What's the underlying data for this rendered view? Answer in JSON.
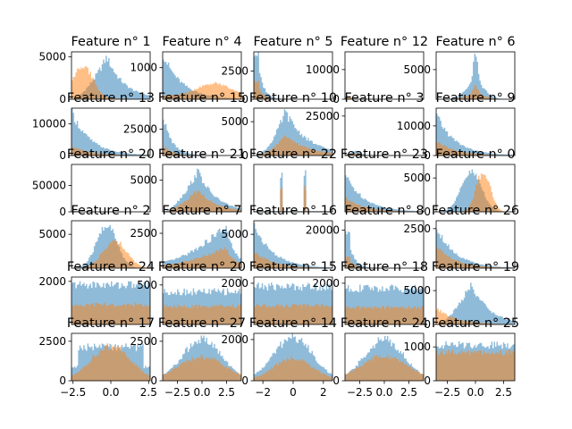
{
  "colors": {
    "blue": "#1f77b4",
    "orange": "#ff7f0e",
    "axes": "#000000"
  },
  "chart_data": [
    {
      "id": "r0c0",
      "type": "histogram",
      "title": "Feature n° 1",
      "yticks": [
        "5000",
        "0"
      ],
      "xticks": [],
      "ylim": [
        0,
        5600
      ],
      "shape": {
        "b": "skewpeak",
        "o": "leftpeak"
      },
      "b_peak": 5000,
      "o_peak": 4000
    },
    {
      "id": "r0c1",
      "type": "histogram",
      "title": "Feature n° 4",
      "yticks": [
        "1000"
      ],
      "xticks": [],
      "ylim": [
        0,
        1500
      ],
      "shape": {
        "b": "decay",
        "o": "hump_right"
      },
      "b_peak": 1450,
      "o_peak": 500
    },
    {
      "id": "r0c2",
      "type": "histogram",
      "title": "Feature n° 5",
      "yticks": [
        "2500",
        "0"
      ],
      "xticks": [],
      "ylim": [
        0,
        4200
      ],
      "shape": {
        "b": "spike_left",
        "o": "spike_left"
      },
      "b_peak": 4000,
      "o_peak": 1500
    },
    {
      "id": "r0c3",
      "type": "histogram",
      "title": "Feature n° 12",
      "yticks": [
        "10000",
        "0"
      ],
      "xticks": [],
      "ylim": [
        0,
        16000
      ],
      "shape": {
        "b": "tiny_left",
        "o": "tiny_left"
      },
      "b_peak": 800,
      "o_peak": 600
    },
    {
      "id": "r0c4",
      "type": "histogram",
      "title": "Feature n° 6",
      "yticks": [
        "5000"
      ],
      "xticks": [],
      "ylim": [
        0,
        8000
      ],
      "shape": {
        "b": "spike_center",
        "o": "spike_center"
      },
      "b_peak": 7500,
      "o_peak": 2500
    },
    {
      "id": "r1c0",
      "type": "histogram",
      "title": "Feature n° 13",
      "yticks": [
        "10000",
        "0"
      ],
      "xticks": [],
      "ylim": [
        0,
        15000
      ],
      "shape": {
        "b": "decay",
        "o": "decay"
      },
      "b_peak": 14000,
      "o_peak": 3000
    },
    {
      "id": "r1c1",
      "type": "histogram",
      "title": "Feature n° 15",
      "yticks": [
        "25000"
      ],
      "xticks": [],
      "ylim": [
        0,
        45000
      ],
      "shape": {
        "b": "decay_fast",
        "o": "decay_fast"
      },
      "b_peak": 40000,
      "o_peak": 10000
    },
    {
      "id": "r1c2",
      "type": "histogram",
      "title": "Feature n° 10",
      "yticks": [
        "5000",
        "0"
      ],
      "xticks": [],
      "ylim": [
        0,
        7000
      ],
      "shape": {
        "b": "skewpeak_mid",
        "o": "skewpeak_mid"
      },
      "b_peak": 6500,
      "o_peak": 3000
    },
    {
      "id": "r1c3",
      "type": "histogram",
      "title": "Feature n° 3",
      "yticks": [
        "25000"
      ],
      "xticks": [],
      "ylim": [
        0,
        30000
      ],
      "shape": {
        "b": "tiny_left2",
        "o": "tiny_left2"
      },
      "b_peak": 3000,
      "o_peak": 1500
    },
    {
      "id": "r1c4",
      "type": "histogram",
      "title": "Feature n° 9",
      "yticks": [
        "10000",
        "0"
      ],
      "xticks": [],
      "ylim": [
        0,
        16000
      ],
      "shape": {
        "b": "decay",
        "o": "decay"
      },
      "b_peak": 14000,
      "o_peak": 5000
    },
    {
      "id": "r2c0",
      "type": "histogram",
      "title": "Feature n° 20",
      "yticks": [
        "50000",
        "0"
      ],
      "xticks": [],
      "ylim": [
        0,
        90000
      ],
      "shape": {
        "b": "tiny_left",
        "o": "tiny_left"
      },
      "b_peak": 2000,
      "o_peak": 1000
    },
    {
      "id": "r2c1",
      "type": "histogram",
      "title": "Feature n° 21",
      "yticks": [
        "5000"
      ],
      "xticks": [],
      "ylim": [
        0,
        7500
      ],
      "shape": {
        "b": "skewpeak",
        "o": "skewpeak"
      },
      "b_peak": 6500,
      "o_peak": 3500
    },
    {
      "id": "r2c2",
      "type": "histogram",
      "title": "Feature n° 22",
      "yticks": [],
      "xticks": [],
      "ylim": [
        0,
        10
      ],
      "shape": {
        "b": "lines",
        "o": "lines"
      },
      "b_peak": 8,
      "o_peak": 5
    },
    {
      "id": "r2c3",
      "type": "histogram",
      "title": "Feature n° 23",
      "yticks": [],
      "xticks": [],
      "ylim": [
        0,
        10
      ],
      "shape": {
        "b": "decay",
        "o": "decay"
      },
      "b_peak": 8,
      "o_peak": 3
    },
    {
      "id": "r2c4",
      "type": "histogram",
      "title": "Feature n° 0",
      "yticks": [
        "5000",
        "0"
      ],
      "xticks": [],
      "ylim": [
        0,
        7000
      ],
      "shape": {
        "b": "peak_center",
        "o": "peak_center_narrow"
      },
      "b_peak": 5800,
      "o_peak": 6000
    },
    {
      "id": "r3c0",
      "type": "histogram",
      "title": "Feature n° 2",
      "yticks": [
        "5000"
      ],
      "xticks": [],
      "ylim": [
        0,
        7000
      ],
      "shape": {
        "b": "peak_center",
        "o": "peak_right"
      },
      "b_peak": 6300,
      "o_peak": 4000
    },
    {
      "id": "r3c1",
      "type": "histogram",
      "title": "Feature n° 7",
      "yticks": [
        "2500"
      ],
      "xticks": [],
      "ylim": [
        0,
        3400
      ],
      "shape": {
        "b": "ramp_up",
        "o": "ramp_up"
      },
      "b_peak": 3000,
      "o_peak": 1500
    },
    {
      "id": "r3c2",
      "type": "histogram",
      "title": "Feature n° 16",
      "yticks": [
        "5000"
      ],
      "xticks": [],
      "ylim": [
        0,
        7000
      ],
      "shape": {
        "b": "decay",
        "o": "decay"
      },
      "b_peak": 6500,
      "o_peak": 2500
    },
    {
      "id": "r3c3",
      "type": "histogram",
      "title": "Feature n° 8",
      "yticks": [
        "20000"
      ],
      "xticks": [],
      "ylim": [
        0,
        25000
      ],
      "shape": {
        "b": "spike_left",
        "o": "spike_left"
      },
      "b_peak": 18000,
      "o_peak": 6000
    },
    {
      "id": "r3c4",
      "type": "histogram",
      "title": "Feature n° 26",
      "yticks": [
        "2500"
      ],
      "xticks": [],
      "ylim": [
        0,
        3000
      ],
      "shape": {
        "b": "decay",
        "o": "decay"
      },
      "b_peak": 2700,
      "o_peak": 1400
    },
    {
      "id": "r4c0",
      "type": "histogram",
      "title": "Feature n° 24",
      "yticks": [
        "2000"
      ],
      "xticks": [],
      "ylim": [
        0,
        2200
      ],
      "shape": {
        "b": "flat",
        "o": "flat"
      },
      "b_peak": 2000,
      "o_peak": 1000
    },
    {
      "id": "r4c1",
      "type": "histogram",
      "title": "Feature n° 20",
      "yticks": [
        "500"
      ],
      "xticks": [],
      "ylim": [
        0,
        600
      ],
      "shape": {
        "b": "flat",
        "o": "flat"
      },
      "b_peak": 450,
      "o_peak": 250
    },
    {
      "id": "r4c2",
      "type": "histogram",
      "title": "Feature n° 15",
      "yticks": [
        "2000"
      ],
      "xticks": [],
      "ylim": [
        0,
        2300
      ],
      "shape": {
        "b": "flat",
        "o": "flat"
      },
      "b_peak": 2000,
      "o_peak": 1000
    },
    {
      "id": "r4c3",
      "type": "histogram",
      "title": "Feature n° 18",
      "yticks": [
        "2000"
      ],
      "xticks": [],
      "ylim": [
        0,
        2300
      ],
      "shape": {
        "b": "flat",
        "o": "flat"
      },
      "b_peak": 1900,
      "o_peak": 900
    },
    {
      "id": "r4c4",
      "type": "histogram",
      "title": "Feature n° 19",
      "yticks": [
        "5000",
        "0"
      ],
      "xticks": [],
      "ylim": [
        0,
        7000
      ],
      "shape": {
        "b": "skewpeak",
        "o": "decay"
      },
      "b_peak": 6000,
      "o_peak": 2500
    },
    {
      "id": "r5c0",
      "type": "histogram",
      "title": "Feature n° 17",
      "yticks": [
        "2500",
        "0"
      ],
      "xticks": [
        "−2.5",
        "0.0",
        "2.5"
      ],
      "xlim": [
        -2.6,
        2.6
      ],
      "ylim": [
        0,
        3000
      ],
      "shape": {
        "b": "plateau",
        "o": "dome"
      },
      "b_peak": 2500,
      "o_peak": 2200
    },
    {
      "id": "r5c1",
      "type": "histogram",
      "title": "Feature n° 27",
      "yticks": [
        "2500",
        "0"
      ],
      "xticks": [
        "−2.5",
        "0.0",
        "2.5"
      ],
      "xlim": [
        -4,
        4
      ],
      "ylim": [
        0,
        3000
      ],
      "shape": {
        "b": "dome",
        "o": "dome_wide"
      },
      "b_peak": 2600,
      "o_peak": 1500
    },
    {
      "id": "r5c2",
      "type": "histogram",
      "title": "Feature n° 14",
      "yticks": [
        "2000",
        "0"
      ],
      "xticks": [
        "−2",
        "0",
        "2"
      ],
      "xlim": [
        -2.6,
        2.6
      ],
      "ylim": [
        0,
        2300
      ],
      "shape": {
        "b": "dome",
        "o": "dome"
      },
      "b_peak": 2100,
      "o_peak": 1100
    },
    {
      "id": "r5c3",
      "type": "histogram",
      "title": "Feature n° 24",
      "yticks": [
        "0"
      ],
      "xticks": [
        "−2.5",
        "0.0",
        "2.5"
      ],
      "xlim": [
        -4,
        4
      ],
      "ylim": [
        0,
        2300
      ],
      "shape": {
        "b": "dome",
        "o": "dome_wide"
      },
      "b_peak": 2000,
      "o_peak": 1200
    },
    {
      "id": "r5c4",
      "type": "histogram",
      "title": "Feature n° 25",
      "yticks": [
        "1000",
        "0"
      ],
      "xticks": [
        "−2.5",
        "0.0",
        "2.5"
      ],
      "xlim": [
        -3.5,
        3.5
      ],
      "ylim": [
        0,
        1400
      ],
      "shape": {
        "b": "flat",
        "o": "flat"
      },
      "b_peak": 1150,
      "o_peak": 900
    }
  ]
}
